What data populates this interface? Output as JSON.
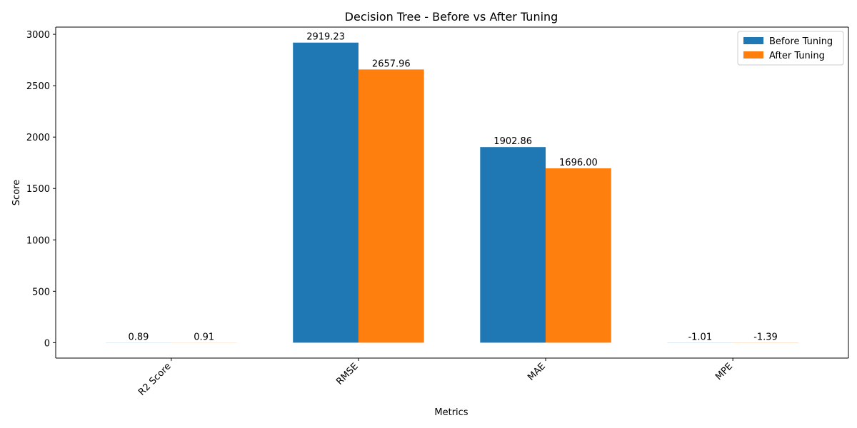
{
  "chart_data": {
    "type": "bar",
    "title": "Decision Tree - Before vs After Tuning",
    "xlabel": "Metrics",
    "ylabel": "Score",
    "categories": [
      "R2 Score",
      "RMSE",
      "MAE",
      "MPE"
    ],
    "series": [
      {
        "name": "Before Tuning",
        "color": "#1f77b4",
        "values": [
          0.89,
          2919.23,
          1902.86,
          -1.01
        ],
        "labels": [
          "0.89",
          "2919.23",
          "1902.86",
          "-1.01"
        ]
      },
      {
        "name": "After Tuning",
        "color": "#ff7f0e",
        "values": [
          0.91,
          2657.96,
          1696.0,
          -1.39
        ],
        "labels": [
          "0.91",
          "2657.96",
          "1696.00",
          "-1.39"
        ]
      }
    ],
    "ylim": [
      -150,
      3070
    ],
    "yticks": [
      0,
      500,
      1000,
      1500,
      2000,
      2500,
      3000
    ],
    "ytick_labels": [
      "0",
      "500",
      "1000",
      "1500",
      "2000",
      "2500",
      "3000"
    ],
    "xtick_rotation": 45,
    "grid": false,
    "legend_placement": "top-right"
  }
}
